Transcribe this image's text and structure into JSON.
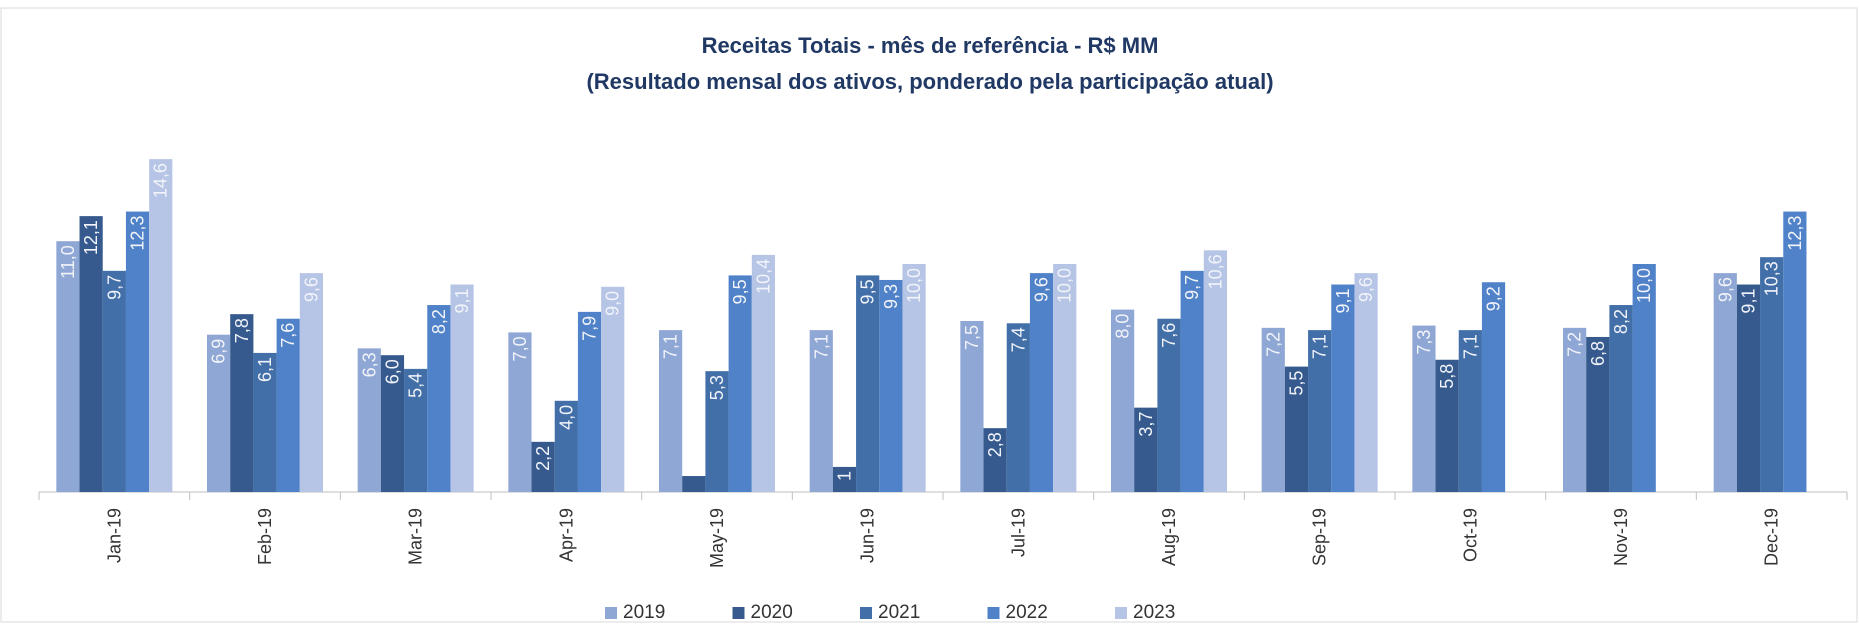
{
  "chart_data": {
    "type": "bar",
    "title": "Receitas Totais - mês de referência - R$ MM",
    "subtitle": "(Resultado mensal dos ativos, ponderado pela participação atual)",
    "categories": [
      "Jan-19",
      "Feb-19",
      "Mar-19",
      "Apr-19",
      "May-19",
      "Jun-19",
      "Jul-19",
      "Aug-19",
      "Sep-19",
      "Oct-19",
      "Nov-19",
      "Dec-19"
    ],
    "ylim": [
      0,
      15
    ],
    "series": [
      {
        "name": "2019",
        "color": "#8fa7d4",
        "values": [
          11.0,
          6.9,
          6.3,
          7.0,
          7.1,
          7.1,
          7.5,
          8.0,
          7.2,
          7.3,
          7.2,
          9.6
        ],
        "value_labels": [
          "11,0",
          "6,9",
          "6,3",
          "7,0",
          "7,1",
          "7,1",
          "7,5",
          "8,0",
          "7,2",
          "7,3",
          "7,2",
          "9,6"
        ]
      },
      {
        "name": "2020",
        "color": "#365a8e",
        "values": [
          12.1,
          7.8,
          6.0,
          2.2,
          0.7,
          1.1,
          2.8,
          3.7,
          5.5,
          5.8,
          6.8,
          9.1
        ],
        "value_labels": [
          "12,1",
          "7,8",
          "6,0",
          "2,2",
          null,
          "1",
          "2,8",
          "3,7",
          "5,5",
          "5,8",
          "6,8",
          "9,1"
        ]
      },
      {
        "name": "2021",
        "color": "#426fa8",
        "values": [
          9.7,
          6.1,
          5.4,
          4.0,
          5.3,
          9.5,
          7.4,
          7.6,
          7.1,
          7.1,
          8.2,
          10.3
        ],
        "value_labels": [
          "9,7",
          "6,1",
          "5,4",
          "4,0",
          "5,3",
          "9,5",
          "7,4",
          "7,6",
          "7,1",
          "7,1",
          "8,2",
          "10,3"
        ]
      },
      {
        "name": "2022",
        "color": "#4f82c8",
        "values": [
          12.3,
          7.6,
          8.2,
          7.9,
          9.5,
          9.3,
          9.6,
          9.7,
          9.1,
          9.2,
          10.0,
          12.3
        ],
        "value_labels": [
          "12,3",
          "7,6",
          "8,2",
          "7,9",
          "9,5",
          "9,3",
          "9,6",
          "9,7",
          "9,1",
          "9,2",
          "10,0",
          "12,3"
        ]
      },
      {
        "name": "2023",
        "color": "#b6c5e5",
        "values": [
          14.6,
          9.6,
          9.1,
          9.0,
          10.4,
          10.0,
          10.0,
          10.6,
          9.6,
          null,
          null,
          null
        ],
        "value_labels": [
          "14,6",
          "9,6",
          "9,1",
          "9,0",
          "10,4",
          "10,0",
          "10,0",
          "10,6",
          "9,6",
          null,
          null,
          null
        ]
      }
    ]
  }
}
